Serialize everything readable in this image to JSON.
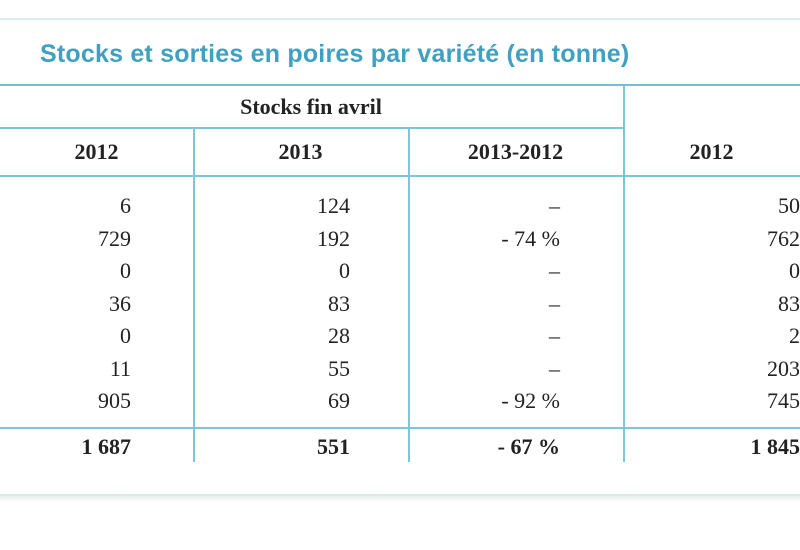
{
  "title": "Stocks et sorties en poires par variété (en tonne)",
  "table": {
    "group_header": "Stocks fin avril",
    "columns": [
      "2012",
      "2013",
      "2013-2012",
      "2012"
    ],
    "rows": [
      [
        "6",
        "124",
        "–",
        "50"
      ],
      [
        "729",
        "192",
        "- 74 %",
        "762"
      ],
      [
        "0",
        "0",
        "–",
        "0"
      ],
      [
        "36",
        "83",
        "–",
        "83"
      ],
      [
        "0",
        "28",
        "–",
        "2"
      ],
      [
        "11",
        "55",
        "–",
        "203"
      ],
      [
        "905",
        "69",
        "- 92 %",
        "745"
      ]
    ],
    "total": [
      "1 687",
      "551",
      "- 67 %",
      "1 845"
    ]
  },
  "colors": {
    "title": "#3fa0c2",
    "rules": "#7cc6dc"
  }
}
